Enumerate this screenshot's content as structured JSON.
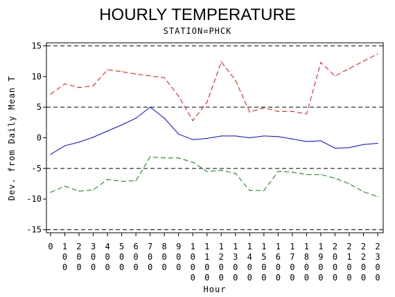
{
  "chart_data": {
    "type": "line",
    "title": "HOURLY TEMPERATURE",
    "subtitle": "STATION=PHCK",
    "xlabel": "Hour",
    "ylabel": "Dev. from Daily Mean T",
    "x": [
      0,
      100,
      200,
      300,
      400,
      500,
      600,
      700,
      800,
      900,
      1000,
      1100,
      1200,
      1300,
      1400,
      1500,
      1600,
      1700,
      1800,
      1900,
      2000,
      2100,
      2200,
      2300
    ],
    "x_tick_labels": [
      "0",
      "100",
      "200",
      "300",
      "400",
      "500",
      "600",
      "700",
      "800",
      "900",
      "1000",
      "1100",
      "1200",
      "1300",
      "1400",
      "1500",
      "1600",
      "1700",
      "1800",
      "1900",
      "2000",
      "2100",
      "2200",
      "2300"
    ],
    "ylim": [
      -15.5,
      15.5
    ],
    "y_ticks": [
      -15,
      -10,
      -5,
      0,
      5,
      10,
      15
    ],
    "reference_lines": [
      -15,
      -5,
      5,
      15
    ],
    "series": [
      {
        "style": "dashed",
        "color": "#ff0000",
        "values": [
          7.1,
          8.8,
          8.2,
          8.5,
          11.1,
          10.8,
          10.4,
          10.1,
          9.8,
          6.8,
          2.8,
          5.8,
          12.4,
          9.4,
          4.2,
          4.9,
          4.3,
          4.3,
          3.9,
          12.3,
          10.1,
          11.3,
          12.5,
          13.7
        ]
      },
      {
        "style": "solid",
        "color": "#0000ff",
        "values": [
          -2.7,
          -1.3,
          -0.7,
          0.1,
          1.1,
          2.1,
          3.2,
          5.0,
          3.2,
          0.6,
          -0.3,
          -0.1,
          0.3,
          0.3,
          0.0,
          0.3,
          0.2,
          -0.2,
          -0.6,
          -0.5,
          -1.7,
          -1.6,
          -1.1,
          -0.9
        ]
      },
      {
        "style": "dashed",
        "color": "#008000",
        "values": [
          -8.9,
          -7.9,
          -8.7,
          -8.5,
          -6.8,
          -7.1,
          -7.0,
          -3.1,
          -3.3,
          -3.3,
          -4.0,
          -5.5,
          -5.3,
          -5.8,
          -8.6,
          -8.6,
          -5.5,
          -5.6,
          -6.0,
          -6.0,
          -6.6,
          -7.5,
          -8.8,
          -9.6
        ]
      }
    ],
    "grid": false,
    "colors": {
      "axis": "#000000",
      "reference": "#000000",
      "background": "#ffffff"
    }
  }
}
